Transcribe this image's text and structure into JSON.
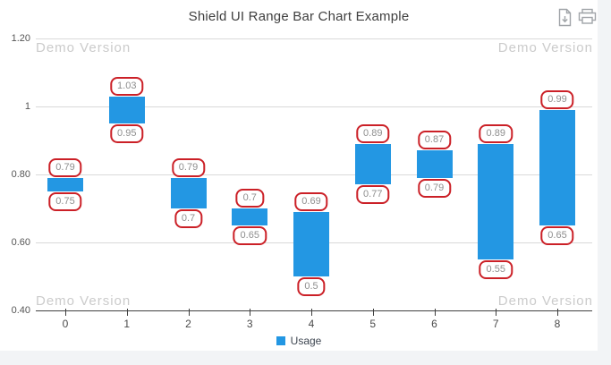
{
  "title": "Shield UI Range Bar Chart Example",
  "toolbar": {
    "export_icon": "export-document-icon",
    "print_icon": "printer-icon"
  },
  "watermark": {
    "text": "Demo Version"
  },
  "legend": {
    "label": "Usage"
  },
  "colors": {
    "bar": "#2397e3",
    "label_border": "#cb2027",
    "label_text": "#8e8e8e",
    "grid": "#d9d9d9",
    "axis": "#3f3f3f",
    "watermark": "#cbcbcb",
    "icon": "#a0a4a8",
    "page_background": "#f2f4f6",
    "panel_background": "#ffffff"
  },
  "chart_data": {
    "type": "bar",
    "subtype": "range-bar",
    "title": "Shield UI Range Bar Chart Example",
    "categories": [
      "0",
      "1",
      "2",
      "3",
      "4",
      "5",
      "6",
      "7",
      "8"
    ],
    "series": [
      {
        "name": "Usage",
        "color": "#2397e3",
        "points": [
          {
            "low": 0.75,
            "high": 0.79,
            "low_label": "0.75",
            "high_label": "0.79"
          },
          {
            "low": 0.95,
            "high": 1.03,
            "low_label": "0.95",
            "high_label": "1.03"
          },
          {
            "low": 0.7,
            "high": 0.79,
            "low_label": "0.7",
            "high_label": "0.79"
          },
          {
            "low": 0.65,
            "high": 0.7,
            "low_label": "0.65",
            "high_label": "0.7"
          },
          {
            "low": 0.5,
            "high": 0.69,
            "low_label": "0.5",
            "high_label": "0.69"
          },
          {
            "low": 0.77,
            "high": 0.89,
            "low_label": "0.77",
            "high_label": "0.89"
          },
          {
            "low": 0.79,
            "high": 0.87,
            "low_label": "0.79",
            "high_label": "0.87"
          },
          {
            "low": 0.55,
            "high": 0.89,
            "low_label": "0.55",
            "high_label": "0.89"
          },
          {
            "low": 0.65,
            "high": 0.99,
            "low_label": "0.65",
            "high_label": "0.99"
          }
        ]
      }
    ],
    "y_axis": {
      "min": 0.4,
      "max": 1.2,
      "ticks": [
        {
          "value": 1.2,
          "label": "1.20"
        },
        {
          "value": 1.0,
          "label": "1"
        },
        {
          "value": 0.8,
          "label": "0.80"
        },
        {
          "value": 0.6,
          "label": "0.60"
        },
        {
          "value": 0.4,
          "label": "0.40"
        }
      ]
    },
    "grid": true,
    "legend_position": "bottom",
    "point_labels": "high above bar, low below bar, red rounded boxes"
  }
}
